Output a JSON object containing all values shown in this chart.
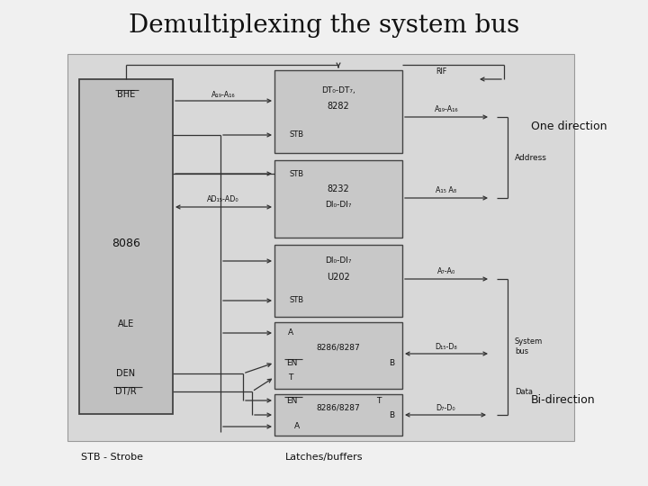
{
  "title": "Demultiplexing the system bus",
  "bg_panel": "#d8d8d8",
  "bg_outer": "#f0f0f0",
  "box_fc": "#c8c8c8",
  "box_ec": "#444444",
  "line_c": "#333333",
  "arrow_c": "#333333",
  "text_c": "#111111",
  "lc": "#555555",
  "title_fs": 20,
  "label_one_dir": "One direction",
  "label_bi_dir": "Bi-direction",
  "label_address": "Address",
  "label_sysbus": "System\nbus",
  "label_data": "Data",
  "label_8086": "8086",
  "label_ALE": "ALE",
  "label_BHE": "BHE",
  "label_DEN": "DEN",
  "label_DTBAR_R": "DT/R",
  "label_stb_strobe": "STB - Strobe",
  "label_latches": "Latches/buffers",
  "box1_line1": "DT₀-DT₇,",
  "box1_line2": "8282",
  "box1_stb": "STB",
  "box1_rif": "RIF",
  "box2_stb": "STB",
  "box2_line1": "8232",
  "box2_line2": "DI₀-DI₇",
  "box3_line1": "DI₀-DI₇",
  "box3_line2": "U202",
  "box3_stb": "STB",
  "box4_A": "A",
  "box4_main": "8286/8287",
  "box4_EN": "EN",
  "box4_B": "B",
  "box4_T": "T",
  "box5_EN": "EN",
  "box5_main": "8286/8287",
  "box5_T": "T",
  "box5_B": "B",
  "box5_A": "A",
  "arr_A19A16_in": "A₁₉-A₁₆",
  "arr_A19A16_out": "A₁₉-A₁₆",
  "arr_AD": "AD₁₅-AD₀",
  "arr_A15A8": "A₁₅ A₈",
  "arr_A7A0": "A₇-A₀",
  "arr_D15D8": "D₁₅-D₈",
  "arr_D7D0": "D₇-D₀"
}
